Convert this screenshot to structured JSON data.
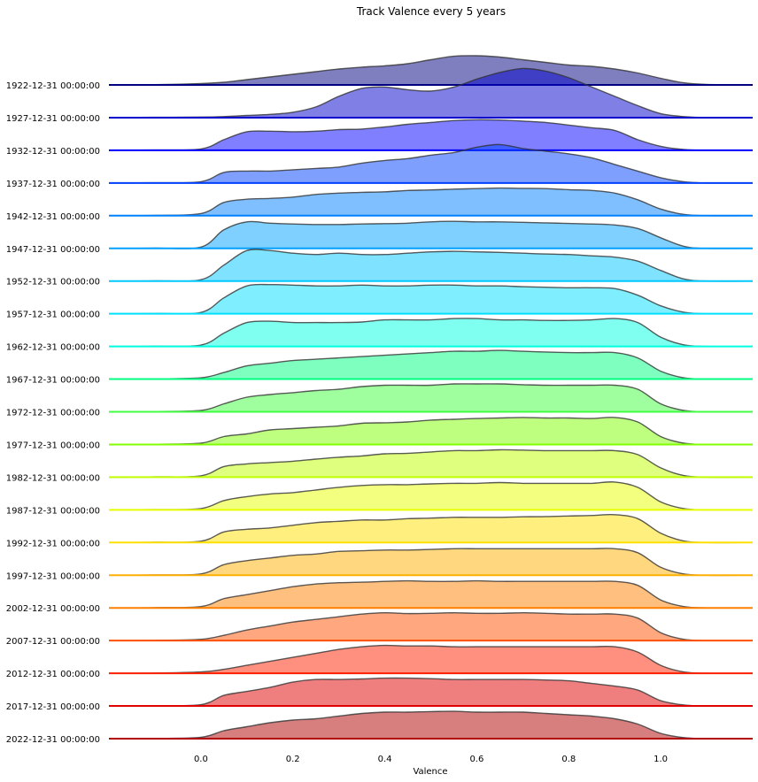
{
  "chart_data": {
    "type": "ridgeline",
    "title": "Track Valence every 5 years",
    "xlabel": "Valence",
    "ylabel": "",
    "xlim": [
      -0.2,
      1.2
    ],
    "xticks": [
      {
        "value": 0.0,
        "label": "0.0"
      },
      {
        "value": 0.2,
        "label": "0.2"
      },
      {
        "value": 0.4,
        "label": "0.4"
      },
      {
        "value": 0.6,
        "label": "0.6"
      },
      {
        "value": 0.8,
        "label": "0.8"
      },
      {
        "value": 1.0,
        "label": "1.0"
      }
    ],
    "grid": false,
    "legend": "none",
    "sample_x": [
      -0.2,
      -0.1,
      0.0,
      0.05,
      0.1,
      0.15,
      0.2,
      0.25,
      0.3,
      0.35,
      0.4,
      0.45,
      0.5,
      0.55,
      0.6,
      0.65,
      0.7,
      0.75,
      0.8,
      0.85,
      0.9,
      0.95,
      1.0,
      1.05,
      1.1,
      1.2
    ],
    "series": [
      {
        "name": "1922-12-31 00:00:00",
        "color": "#000080",
        "density": [
          0,
          0.01,
          0.05,
          0.1,
          0.2,
          0.3,
          0.4,
          0.5,
          0.6,
          0.67,
          0.72,
          0.8,
          0.95,
          1.08,
          1.1,
          1.05,
          0.95,
          0.85,
          0.75,
          0.7,
          0.6,
          0.45,
          0.25,
          0.08,
          0.02,
          0
        ]
      },
      {
        "name": "1927-12-31 00:00:00",
        "color": "#0000cc",
        "density": [
          0,
          0.01,
          0.02,
          0.04,
          0.08,
          0.12,
          0.2,
          0.4,
          0.8,
          1.1,
          1.15,
          1.05,
          1.0,
          1.15,
          1.45,
          1.7,
          1.85,
          1.75,
          1.5,
          1.15,
          0.8,
          0.45,
          0.15,
          0.04,
          0,
          0
        ]
      },
      {
        "name": "1932-12-31 00:00:00",
        "color": "#0000ff",
        "density": [
          0,
          0.01,
          0.05,
          0.4,
          0.7,
          0.72,
          0.7,
          0.72,
          0.78,
          0.8,
          0.88,
          0.98,
          1.05,
          1.12,
          1.15,
          1.14,
          1.1,
          1.05,
          0.95,
          0.85,
          0.75,
          0.4,
          0.15,
          0.03,
          0,
          0
        ]
      },
      {
        "name": "1937-12-31 00:00:00",
        "color": "#0040ff",
        "density": [
          0,
          0.01,
          0.05,
          0.4,
          0.45,
          0.45,
          0.5,
          0.55,
          0.6,
          0.75,
          0.85,
          0.92,
          1.05,
          1.15,
          1.35,
          1.45,
          1.3,
          1.2,
          1.1,
          0.95,
          0.7,
          0.45,
          0.2,
          0.05,
          0,
          0
        ]
      },
      {
        "name": "1942-12-31 00:00:00",
        "color": "#0080ff",
        "density": [
          0,
          0.01,
          0.08,
          0.5,
          0.62,
          0.65,
          0.7,
          0.8,
          0.85,
          0.88,
          0.9,
          0.95,
          0.97,
          1.0,
          1.02,
          1.04,
          1.03,
          1.02,
          0.98,
          0.95,
          0.85,
          0.6,
          0.25,
          0.05,
          0,
          0
        ]
      },
      {
        "name": "1947-12-31 00:00:00",
        "color": "#00a0ff",
        "density": [
          0,
          0.01,
          0.05,
          0.7,
          1.0,
          0.95,
          0.92,
          0.9,
          0.9,
          0.92,
          0.93,
          0.95,
          1.0,
          1.02,
          1.0,
          1.0,
          0.98,
          0.96,
          0.94,
          0.92,
          0.88,
          0.75,
          0.4,
          0.08,
          0,
          0
        ]
      },
      {
        "name": "1952-12-31 00:00:00",
        "color": "#00c8ff",
        "density": [
          0,
          0.01,
          0.05,
          0.6,
          1.15,
          1.15,
          1.05,
          1.0,
          1.05,
          1.0,
          1.0,
          1.05,
          1.1,
          1.12,
          1.1,
          1.08,
          1.05,
          1.02,
          1.0,
          0.95,
          0.9,
          0.75,
          0.4,
          0.08,
          0,
          0
        ]
      },
      {
        "name": "1957-12-31 00:00:00",
        "color": "#00e0ff",
        "density": [
          0,
          0.01,
          0.05,
          0.6,
          1.05,
          1.1,
          1.08,
          1.05,
          1.05,
          1.08,
          1.05,
          1.05,
          1.08,
          1.08,
          1.05,
          1.05,
          1.02,
          1.0,
          0.98,
          0.98,
          0.95,
          0.7,
          0.3,
          0.06,
          0,
          0
        ]
      },
      {
        "name": "1962-12-31 00:00:00",
        "color": "#00ffe0",
        "density": [
          0,
          0.01,
          0.05,
          0.5,
          0.9,
          0.95,
          0.9,
          0.9,
          0.9,
          0.92,
          1.0,
          1.0,
          1.0,
          1.05,
          1.05,
          1.0,
          1.0,
          0.98,
          0.98,
          1.0,
          1.05,
          0.9,
          0.35,
          0.06,
          0,
          0
        ]
      },
      {
        "name": "1967-12-31 00:00:00",
        "color": "#00ff80",
        "density": [
          0,
          0.01,
          0.05,
          0.25,
          0.5,
          0.6,
          0.7,
          0.75,
          0.8,
          0.85,
          0.9,
          0.95,
          1.0,
          1.05,
          1.05,
          1.08,
          1.05,
          1.02,
          1.0,
          1.0,
          1.0,
          0.8,
          0.3,
          0.05,
          0,
          0
        ]
      },
      {
        "name": "1972-12-31 00:00:00",
        "color": "#40ff40",
        "density": [
          0,
          0.01,
          0.05,
          0.3,
          0.55,
          0.65,
          0.72,
          0.8,
          0.85,
          0.95,
          1.0,
          1.0,
          1.0,
          1.05,
          1.05,
          1.05,
          1.02,
          1.0,
          1.0,
          1.0,
          1.0,
          0.85,
          0.3,
          0.05,
          0,
          0
        ]
      },
      {
        "name": "1977-12-31 00:00:00",
        "color": "#80ff00",
        "density": [
          0,
          0.01,
          0.05,
          0.3,
          0.4,
          0.55,
          0.6,
          0.65,
          0.7,
          0.8,
          0.82,
          0.85,
          0.92,
          0.95,
          0.98,
          1.0,
          1.02,
          1.0,
          1.0,
          0.98,
          1.02,
          0.85,
          0.3,
          0.05,
          0,
          0
        ]
      },
      {
        "name": "1982-12-31 00:00:00",
        "color": "#c0ff00",
        "density": [
          0,
          0.01,
          0.05,
          0.4,
          0.5,
          0.55,
          0.6,
          0.68,
          0.75,
          0.8,
          0.88,
          0.9,
          0.95,
          1.0,
          1.0,
          1.03,
          1.02,
          1.0,
          1.0,
          1.0,
          1.0,
          0.85,
          0.35,
          0.06,
          0,
          0
        ]
      },
      {
        "name": "1987-12-31 00:00:00",
        "color": "#e8ff00",
        "density": [
          0,
          0.01,
          0.05,
          0.35,
          0.5,
          0.6,
          0.65,
          0.75,
          0.85,
          0.92,
          0.95,
          0.95,
          0.98,
          1.0,
          1.0,
          1.03,
          1.0,
          1.0,
          1.0,
          1.0,
          1.05,
          0.85,
          0.3,
          0.05,
          0,
          0
        ]
      },
      {
        "name": "1992-12-31 00:00:00",
        "color": "#ffe000",
        "density": [
          0,
          0.01,
          0.05,
          0.4,
          0.5,
          0.55,
          0.65,
          0.75,
          0.8,
          0.85,
          0.85,
          0.9,
          0.92,
          0.95,
          0.95,
          0.95,
          0.97,
          0.98,
          1.0,
          1.02,
          1.05,
          0.9,
          0.35,
          0.06,
          0,
          0
        ]
      },
      {
        "name": "1997-12-31 00:00:00",
        "color": "#ffb000",
        "density": [
          0,
          0.01,
          0.05,
          0.4,
          0.55,
          0.65,
          0.75,
          0.8,
          0.9,
          0.92,
          0.95,
          0.95,
          0.97,
          1.0,
          1.0,
          1.0,
          1.0,
          1.0,
          1.0,
          1.0,
          1.0,
          0.85,
          0.3,
          0.05,
          0,
          0
        ]
      },
      {
        "name": "2002-12-31 00:00:00",
        "color": "#ff8000",
        "density": [
          0,
          0.01,
          0.05,
          0.35,
          0.5,
          0.65,
          0.8,
          0.9,
          0.95,
          0.97,
          1.0,
          1.02,
          1.0,
          1.0,
          1.02,
          1.0,
          1.0,
          1.0,
          1.0,
          1.0,
          1.0,
          0.85,
          0.3,
          0.05,
          0,
          0
        ]
      },
      {
        "name": "2007-12-31 00:00:00",
        "color": "#ff5000",
        "density": [
          0,
          0.01,
          0.05,
          0.2,
          0.4,
          0.55,
          0.7,
          0.8,
          0.9,
          1.0,
          1.05,
          1.02,
          1.03,
          1.05,
          1.03,
          1.03,
          1.05,
          1.03,
          1.0,
          1.0,
          1.0,
          0.85,
          0.3,
          0.05,
          0,
          0
        ]
      },
      {
        "name": "2012-12-31 00:00:00",
        "color": "#ff2000",
        "density": [
          0,
          0.01,
          0.05,
          0.15,
          0.3,
          0.45,
          0.6,
          0.75,
          0.9,
          1.0,
          1.05,
          1.03,
          1.03,
          1.0,
          1.0,
          1.0,
          1.0,
          1.0,
          1.0,
          1.0,
          1.0,
          0.8,
          0.3,
          0.05,
          0,
          0
        ]
      },
      {
        "name": "2017-12-31 00:00:00",
        "color": "#e00000",
        "density": [
          0,
          0.01,
          0.05,
          0.4,
          0.55,
          0.7,
          0.9,
          1.0,
          1.0,
          1.02,
          1.05,
          1.05,
          1.03,
          1.0,
          1.0,
          1.0,
          1.0,
          0.98,
          0.95,
          0.85,
          0.75,
          0.6,
          0.2,
          0.04,
          0,
          0
        ]
      },
      {
        "name": "2022-12-31 00:00:00",
        "color": "#b00000",
        "density": [
          0,
          0.01,
          0.05,
          0.3,
          0.45,
          0.6,
          0.7,
          0.75,
          0.85,
          0.95,
          1.0,
          1.0,
          1.02,
          1.03,
          1.0,
          1.0,
          1.0,
          0.95,
          0.9,
          0.85,
          0.75,
          0.55,
          0.2,
          0.04,
          0,
          0
        ]
      }
    ]
  }
}
